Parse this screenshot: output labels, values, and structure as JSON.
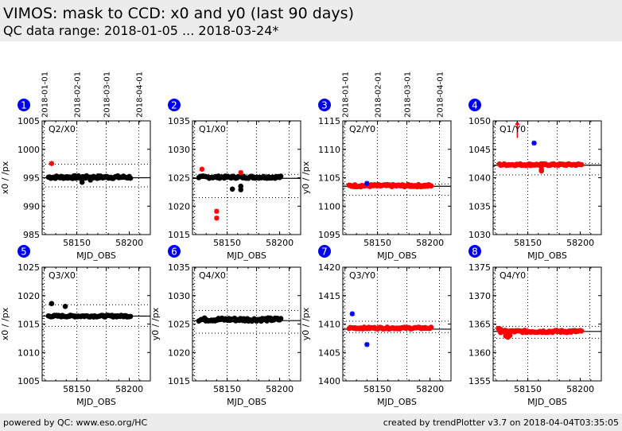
{
  "header": {
    "title": "VIMOS: mask to CCD: x0 and y0 (last 90 days)",
    "subtitle": "QC data range: 2018-01-05 ... 2018-03-24*"
  },
  "footer": {
    "left": "powered by QC: www.eso.org/HC",
    "right": "created by trendPlotter v3.7 on 2018-04-04T03:35:05"
  },
  "colors": {
    "badge": "#0000ee",
    "normal_x": "#000000",
    "normal_y": "#ff0000",
    "outlier_x": "#ff0000",
    "outlier_y": "#0000ff"
  },
  "date_axis": {
    "labels": [
      "2018-01-01",
      "2018-02-01",
      "2018-03-01",
      "2018-04-01"
    ],
    "mjd": [
      58119,
      58150,
      58178,
      58209
    ],
    "shown_on_columns": [
      1,
      3
    ]
  },
  "chart_data": [
    {
      "id": 1,
      "type": "scatter",
      "title": "Q2/X0",
      "xlabel": "MJD_OBS",
      "ylabel": "x0 / /px",
      "xlim": [
        58117,
        58220
      ],
      "ylim": [
        985,
        1005
      ],
      "yticks": [
        985,
        990,
        995,
        1000,
        1005
      ],
      "xticks": [
        58150,
        58200
      ],
      "mean": 995.0,
      "band": [
        993.4,
        997.4
      ],
      "series_color": "normal_x",
      "outlier_color": "outlier_x",
      "baseline": 995.1,
      "jitter": 0.25,
      "extra_points": [
        [
          58155,
          994.2
        ],
        [
          58163,
          994.6
        ]
      ],
      "outliers": [
        [
          58126,
          997.5
        ]
      ],
      "arrows": []
    },
    {
      "id": 2,
      "type": "scatter",
      "title": "Q1/X0",
      "xlabel": "MJD_OBS",
      "ylabel": "",
      "xlim": [
        58117,
        58220
      ],
      "ylim": [
        1015,
        1035
      ],
      "yticks": [
        1015,
        1020,
        1025,
        1030,
        1035
      ],
      "xticks": [
        58150,
        58200
      ],
      "mean": 1024.9,
      "band": [
        1021.5,
        1025.6
      ],
      "series_color": "normal_x",
      "outlier_color": "outlier_x",
      "baseline": 1025.1,
      "jitter": 0.2,
      "extra_points": [
        [
          58155,
          1023.0
        ],
        [
          58163,
          1023.5
        ],
        [
          58163,
          1022.9
        ]
      ],
      "outliers": [
        [
          58126,
          1026.5
        ],
        [
          58140,
          1019.1
        ],
        [
          58140,
          1017.9
        ],
        [
          58163,
          1025.9
        ]
      ],
      "arrows": []
    },
    {
      "id": 3,
      "type": "scatter",
      "title": "Q2/Y0",
      "xlabel": "MJD_OBS",
      "ylabel": "y0 / /px",
      "xlim": [
        58117,
        58220
      ],
      "ylim": [
        1095,
        1115
      ],
      "yticks": [
        1095,
        1100,
        1105,
        1110,
        1115
      ],
      "xticks": [
        58150,
        58200
      ],
      "mean": 1103.5,
      "band": [
        1101.9,
        1103.9
      ],
      "series_color": "normal_y",
      "outlier_color": "outlier_y",
      "baseline": 1103.6,
      "jitter": 0.2,
      "extra_points": [],
      "outliers": [
        [
          58140,
          1104.0
        ]
      ],
      "arrows": []
    },
    {
      "id": 4,
      "type": "scatter",
      "title": "Q1/Y0",
      "xlabel": "MJD_OBS",
      "ylabel": "",
      "xlim": [
        58117,
        58220
      ],
      "ylim": [
        1030,
        1050
      ],
      "yticks": [
        1030,
        1035,
        1040,
        1045,
        1050
      ],
      "xticks": [
        58150,
        58200
      ],
      "mean": 1042.2,
      "band": [
        1040.5,
        1042.5
      ],
      "series_color": "normal_y",
      "outlier_color": "outlier_y",
      "baseline": 1042.3,
      "jitter": 0.15,
      "extra_points": [
        [
          58163,
          1041.5
        ],
        [
          58163,
          1041.2
        ]
      ],
      "outliers": [
        [
          58156,
          1046.1
        ]
      ],
      "arrows": [
        [
          58140,
          1047.0,
          1050.0
        ]
      ]
    },
    {
      "id": 5,
      "type": "scatter",
      "title": "Q3/X0",
      "xlabel": "MJD_OBS",
      "ylabel": "x0 / /px",
      "xlim": [
        58117,
        58220
      ],
      "ylim": [
        1005,
        1025
      ],
      "yticks": [
        1005,
        1010,
        1015,
        1020,
        1025
      ],
      "xticks": [
        58150,
        58200
      ],
      "mean": 1016.4,
      "band": [
        1014.6,
        1018.4
      ],
      "series_color": "normal_x",
      "outlier_color": "outlier_x",
      "baseline": 1016.4,
      "jitter": 0.15,
      "extra_points": [
        [
          58126,
          1018.6
        ],
        [
          58139,
          1018.1
        ]
      ],
      "outliers": [],
      "arrows": []
    },
    {
      "id": 6,
      "type": "scatter",
      "title": "Q4/X0",
      "xlabel": "MJD_OBS",
      "ylabel": "y0 / /px",
      "xlim": [
        58117,
        58220
      ],
      "ylim": [
        1015,
        1035
      ],
      "yticks": [
        1015,
        1020,
        1025,
        1030,
        1035
      ],
      "xticks": [
        58150,
        58200
      ],
      "mean": 1025.6,
      "band": [
        1023.4,
        1027.4
      ],
      "series_color": "normal_x",
      "outlier_color": "outlier_x",
      "baseline": 1025.8,
      "jitter": 0.3,
      "extra_points": [],
      "outliers": [],
      "arrows": []
    },
    {
      "id": 7,
      "type": "scatter",
      "title": "Q3/Y0",
      "xlabel": "MJD_OBS",
      "ylabel": "y0 / /px",
      "xlim": [
        58117,
        58220
      ],
      "ylim": [
        1400,
        1420
      ],
      "yticks": [
        1400,
        1405,
        1410,
        1415,
        1420
      ],
      "xticks": [
        58150,
        58200
      ],
      "mean": 1409.1,
      "band": [
        1408.5,
        1410.5
      ],
      "series_color": "normal_y",
      "outlier_color": "outlier_y",
      "baseline": 1409.3,
      "jitter": 0.15,
      "extra_points": [],
      "outliers": [
        [
          58126,
          1411.8
        ],
        [
          58140,
          1406.4
        ]
      ],
      "arrows": []
    },
    {
      "id": 8,
      "type": "scatter",
      "title": "Q4/Y0",
      "xlabel": "MJD_OBS",
      "ylabel": "",
      "xlim": [
        58117,
        58220
      ],
      "ylim": [
        1355,
        1375
      ],
      "yticks": [
        1355,
        1360,
        1365,
        1370,
        1375
      ],
      "xticks": [
        58150,
        58200
      ],
      "mean": 1363.7,
      "band": [
        1362.5,
        1364.6
      ],
      "series_color": "normal_y",
      "outlier_color": "outlier_y",
      "baseline": 1363.7,
      "jitter": 0.2,
      "extra_points": [
        [
          58122,
          1364.2
        ],
        [
          58124,
          1364.1
        ],
        [
          58129,
          1362.9
        ],
        [
          58131,
          1362.7
        ],
        [
          58133,
          1363.0
        ]
      ],
      "outliers": [],
      "arrows": []
    }
  ]
}
